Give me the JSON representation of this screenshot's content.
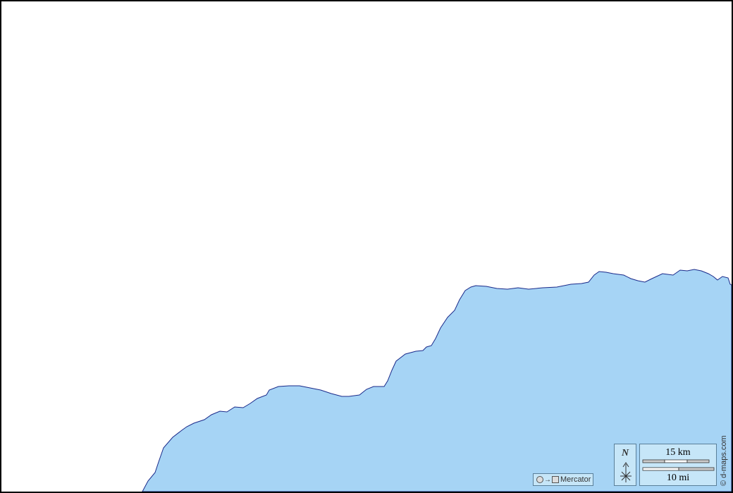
{
  "colors": {
    "sea": "#a6d4f5",
    "land": "#ffffff",
    "coastline": "#1a2a8a",
    "frame": "#000000",
    "legend_bg": "#c6e6f8"
  },
  "legend": {
    "projection": "Mercator",
    "projection_icon": "circle-to-square-icon",
    "north_label": "N",
    "scale_km": "15 km",
    "scale_mi": "10 mi"
  },
  "credit": "© d-maps.com"
}
